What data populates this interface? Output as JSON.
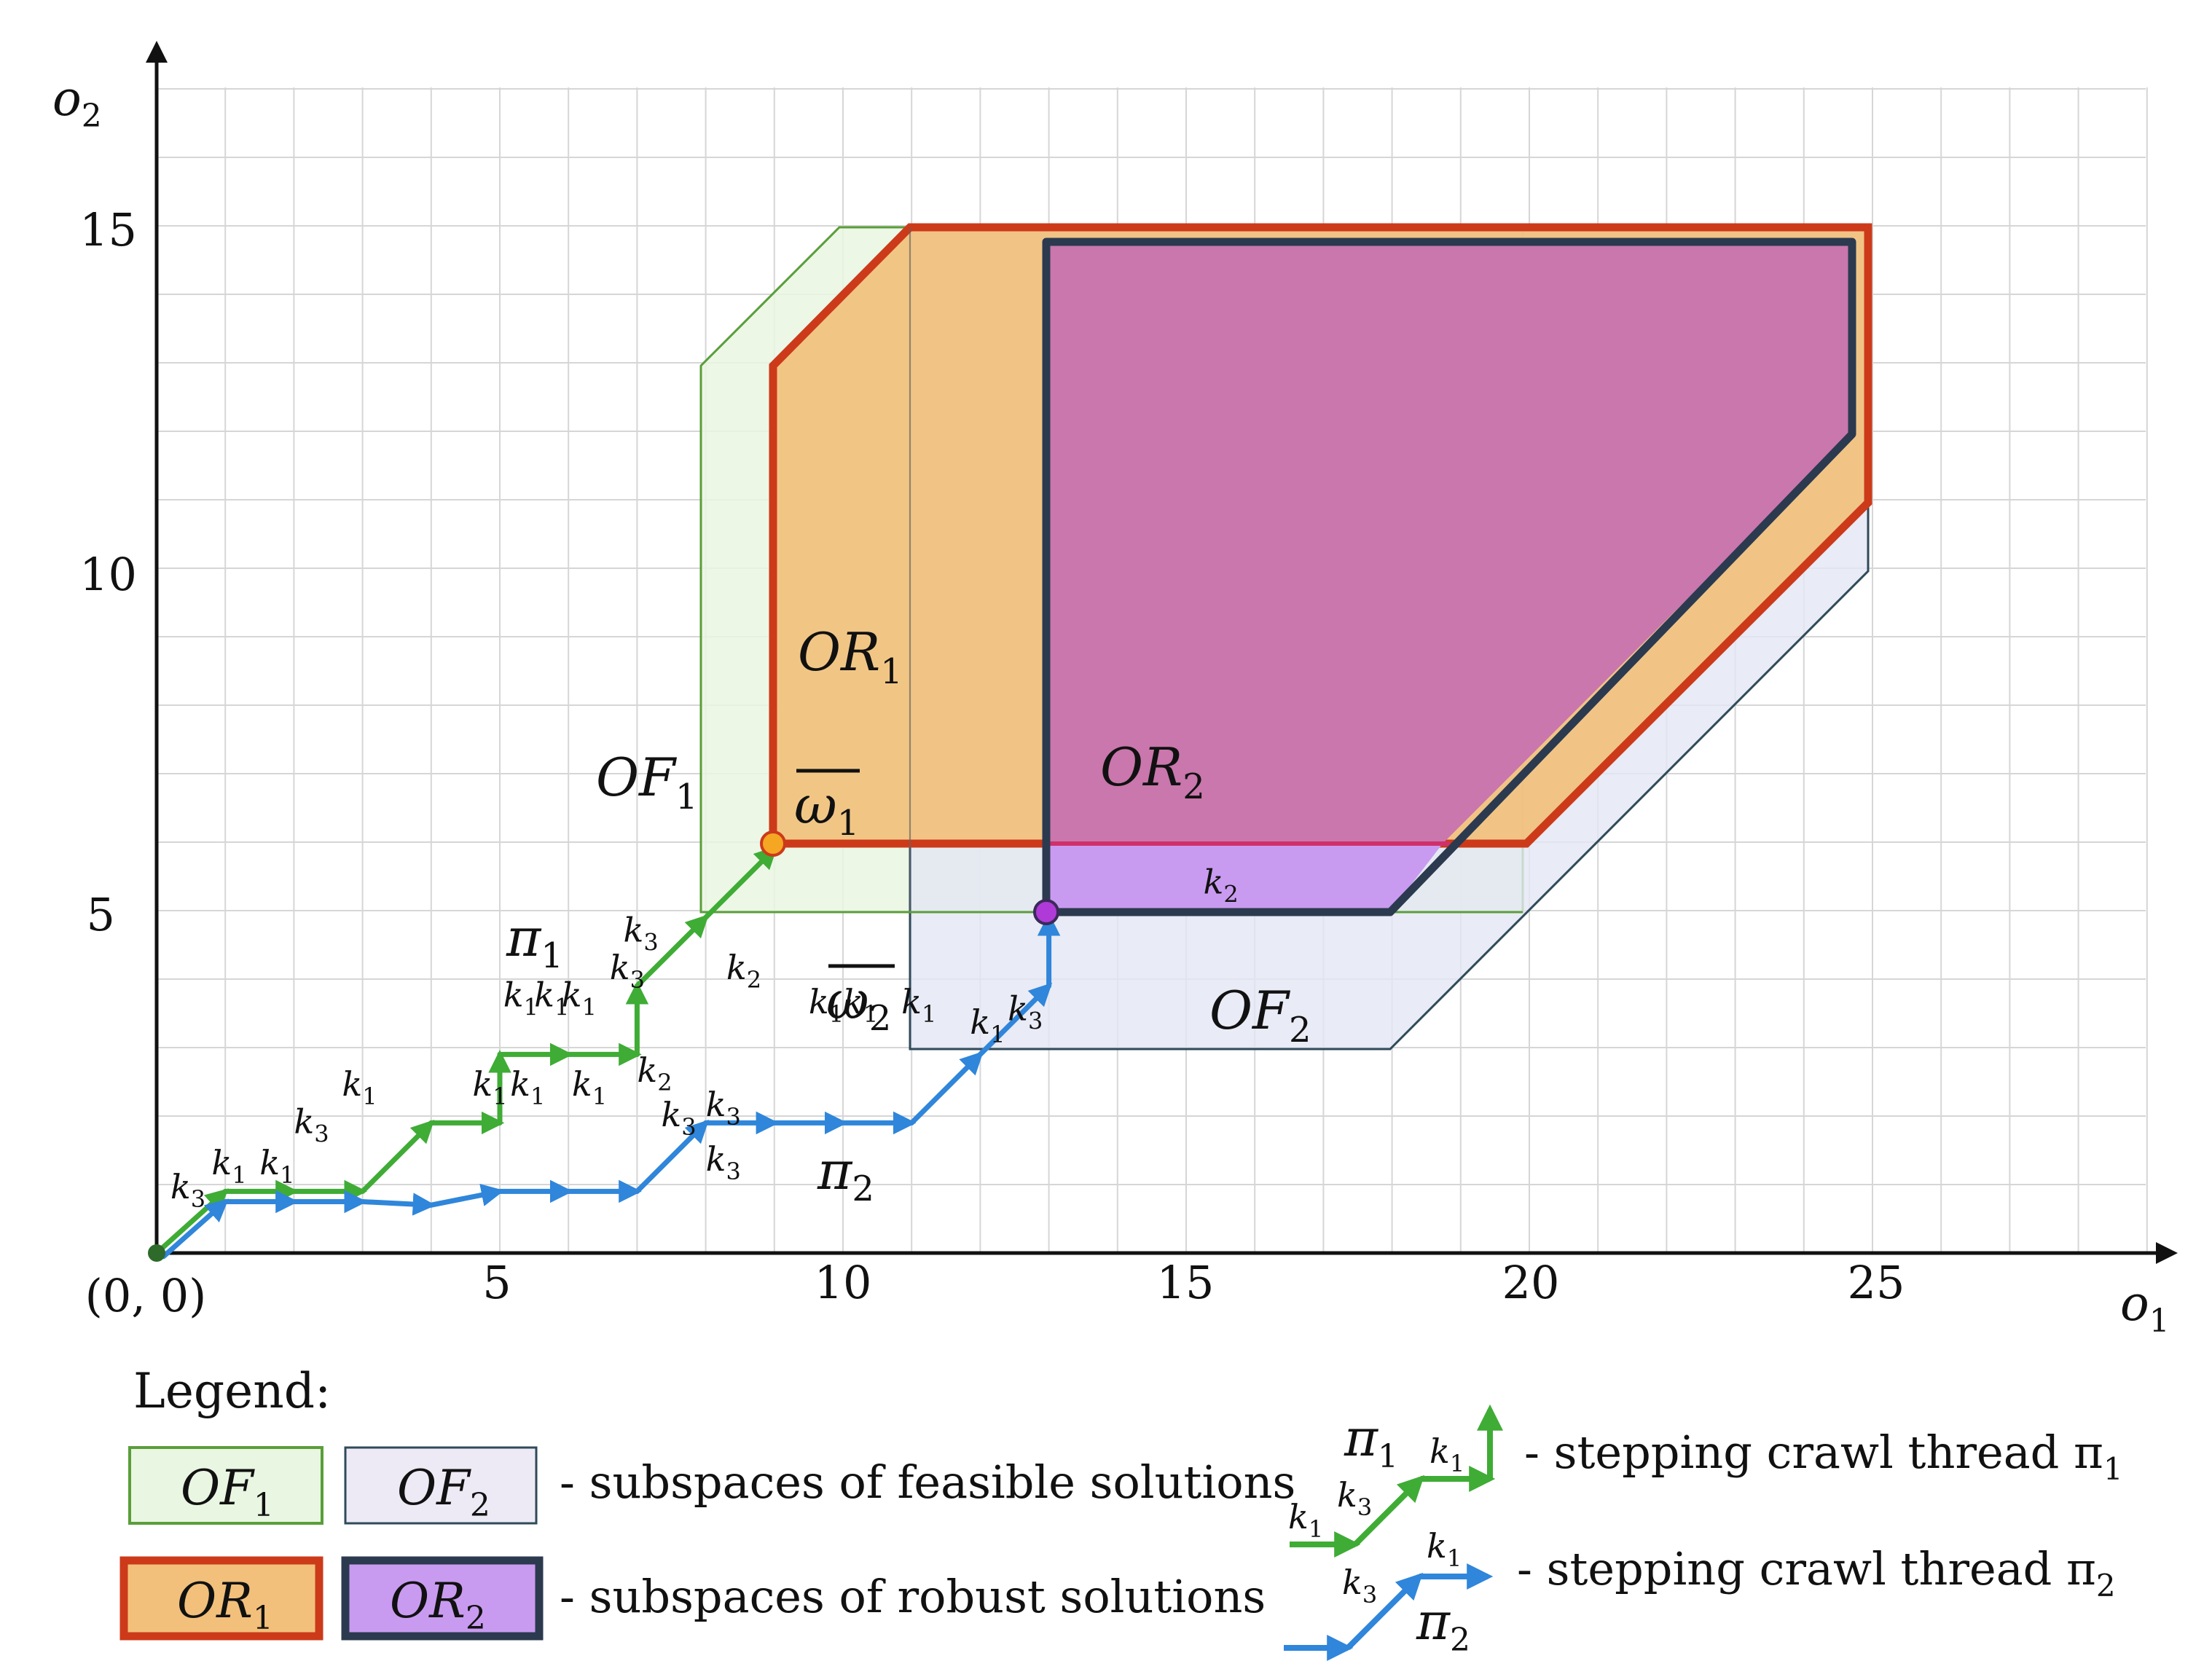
{
  "axes": {
    "x_label": "o",
    "x_sub": "1",
    "y_label": "o",
    "y_sub": "2",
    "origin_label": "(0, 0)",
    "x_ticks": [
      "5",
      "10",
      "15",
      "20",
      "25"
    ],
    "y_ticks": [
      "5",
      "10",
      "15"
    ]
  },
  "regions": {
    "of1": {
      "name": "OF",
      "sub": "1"
    },
    "of2": {
      "name": "OF",
      "sub": "2"
    },
    "or1": {
      "name": "OR",
      "sub": "1"
    },
    "or2": {
      "name": "OR",
      "sub": "2"
    }
  },
  "points": {
    "w1": {
      "name": "ω",
      "sub": "1"
    },
    "w2": {
      "name": "ω",
      "sub": "2"
    }
  },
  "threads": {
    "pi1": {
      "name": "π",
      "sub": "1"
    },
    "pi2": {
      "name": "π",
      "sub": "2"
    }
  },
  "step_labels": {
    "k": "k",
    "s1": "1",
    "s2": "2",
    "s3": "3"
  },
  "legend": {
    "title": "Legend:",
    "feasible_text": "- subspaces of feasible solutions",
    "robust_text": "- subspaces of robust solutions",
    "thread1_text": "- stepping crawl thread π",
    "thread1_sub": "1",
    "thread2_text": "- stepping crawl thread π",
    "thread2_sub": "2"
  },
  "colors": {
    "of1_fill": "#e9f6e2",
    "of1_stroke": "#5a9e3a",
    "of2_fill": "#e4e6f4",
    "of2_stroke": "#2f4a5a",
    "or1_fill": "#f2c07a",
    "or1_stroke": "#cc3a1a",
    "or2_fill": "#c977ac",
    "or2_low_fill": "#c99bf0",
    "or2_stroke": "#2b3a4f",
    "pi1": "#3fac35",
    "pi2": "#2f86da",
    "grid": "#d6d6d6"
  }
}
